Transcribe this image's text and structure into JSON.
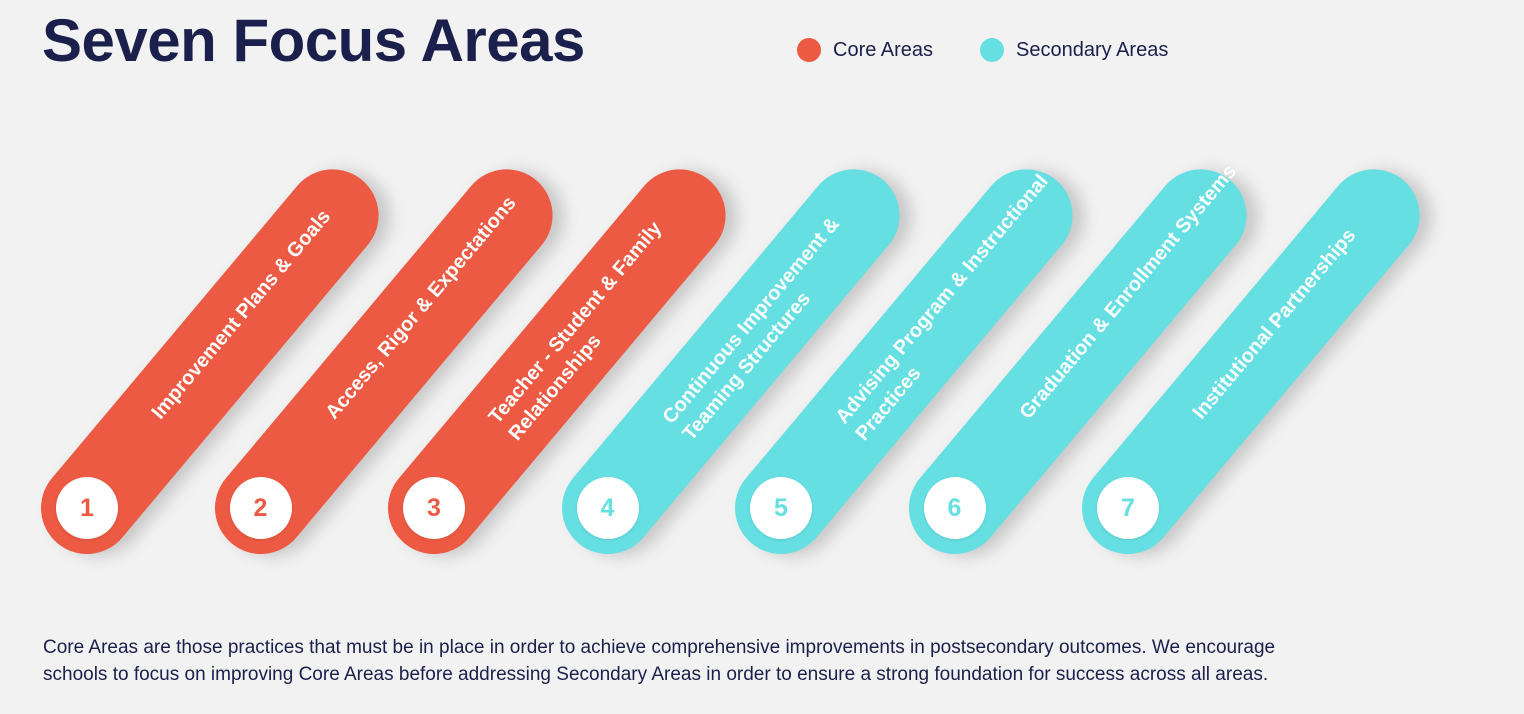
{
  "title": "Seven Focus Areas",
  "legend": [
    {
      "label": "Core Areas",
      "color": "#ed5a43"
    },
    {
      "label": "Secondary Areas",
      "color": "#66dfe3"
    }
  ],
  "areas": [
    {
      "number": "1",
      "label": "Improvement Plans & Goals",
      "type": "core"
    },
    {
      "number": "2",
      "label": "Access, Rigor & Expectations",
      "type": "core"
    },
    {
      "number": "3",
      "label": "Teacher - Student & Family Relationships",
      "type": "core"
    },
    {
      "number": "4",
      "label": "Continuous Improvement & Teaming Structures",
      "type": "secondary"
    },
    {
      "number": "5",
      "label": "Advising Program & Instructional Practices",
      "type": "secondary"
    },
    {
      "number": "6",
      "label": "Graduation & Enrollment Systems",
      "type": "secondary"
    },
    {
      "number": "7",
      "label": "Institutional Partnerships",
      "type": "secondary"
    }
  ],
  "colors": {
    "core": "#ed5a43",
    "secondary": "#66dfe3"
  },
  "description": {
    "line1": "Core Areas are those practices that must be in place in order to achieve  comprehensive improvements in postsecondary outcomes. We encourage",
    "line2": "schools to focus on improving  Core Areas before addressing Secondary Areas in order to ensure a strong foundation for success across all areas."
  }
}
